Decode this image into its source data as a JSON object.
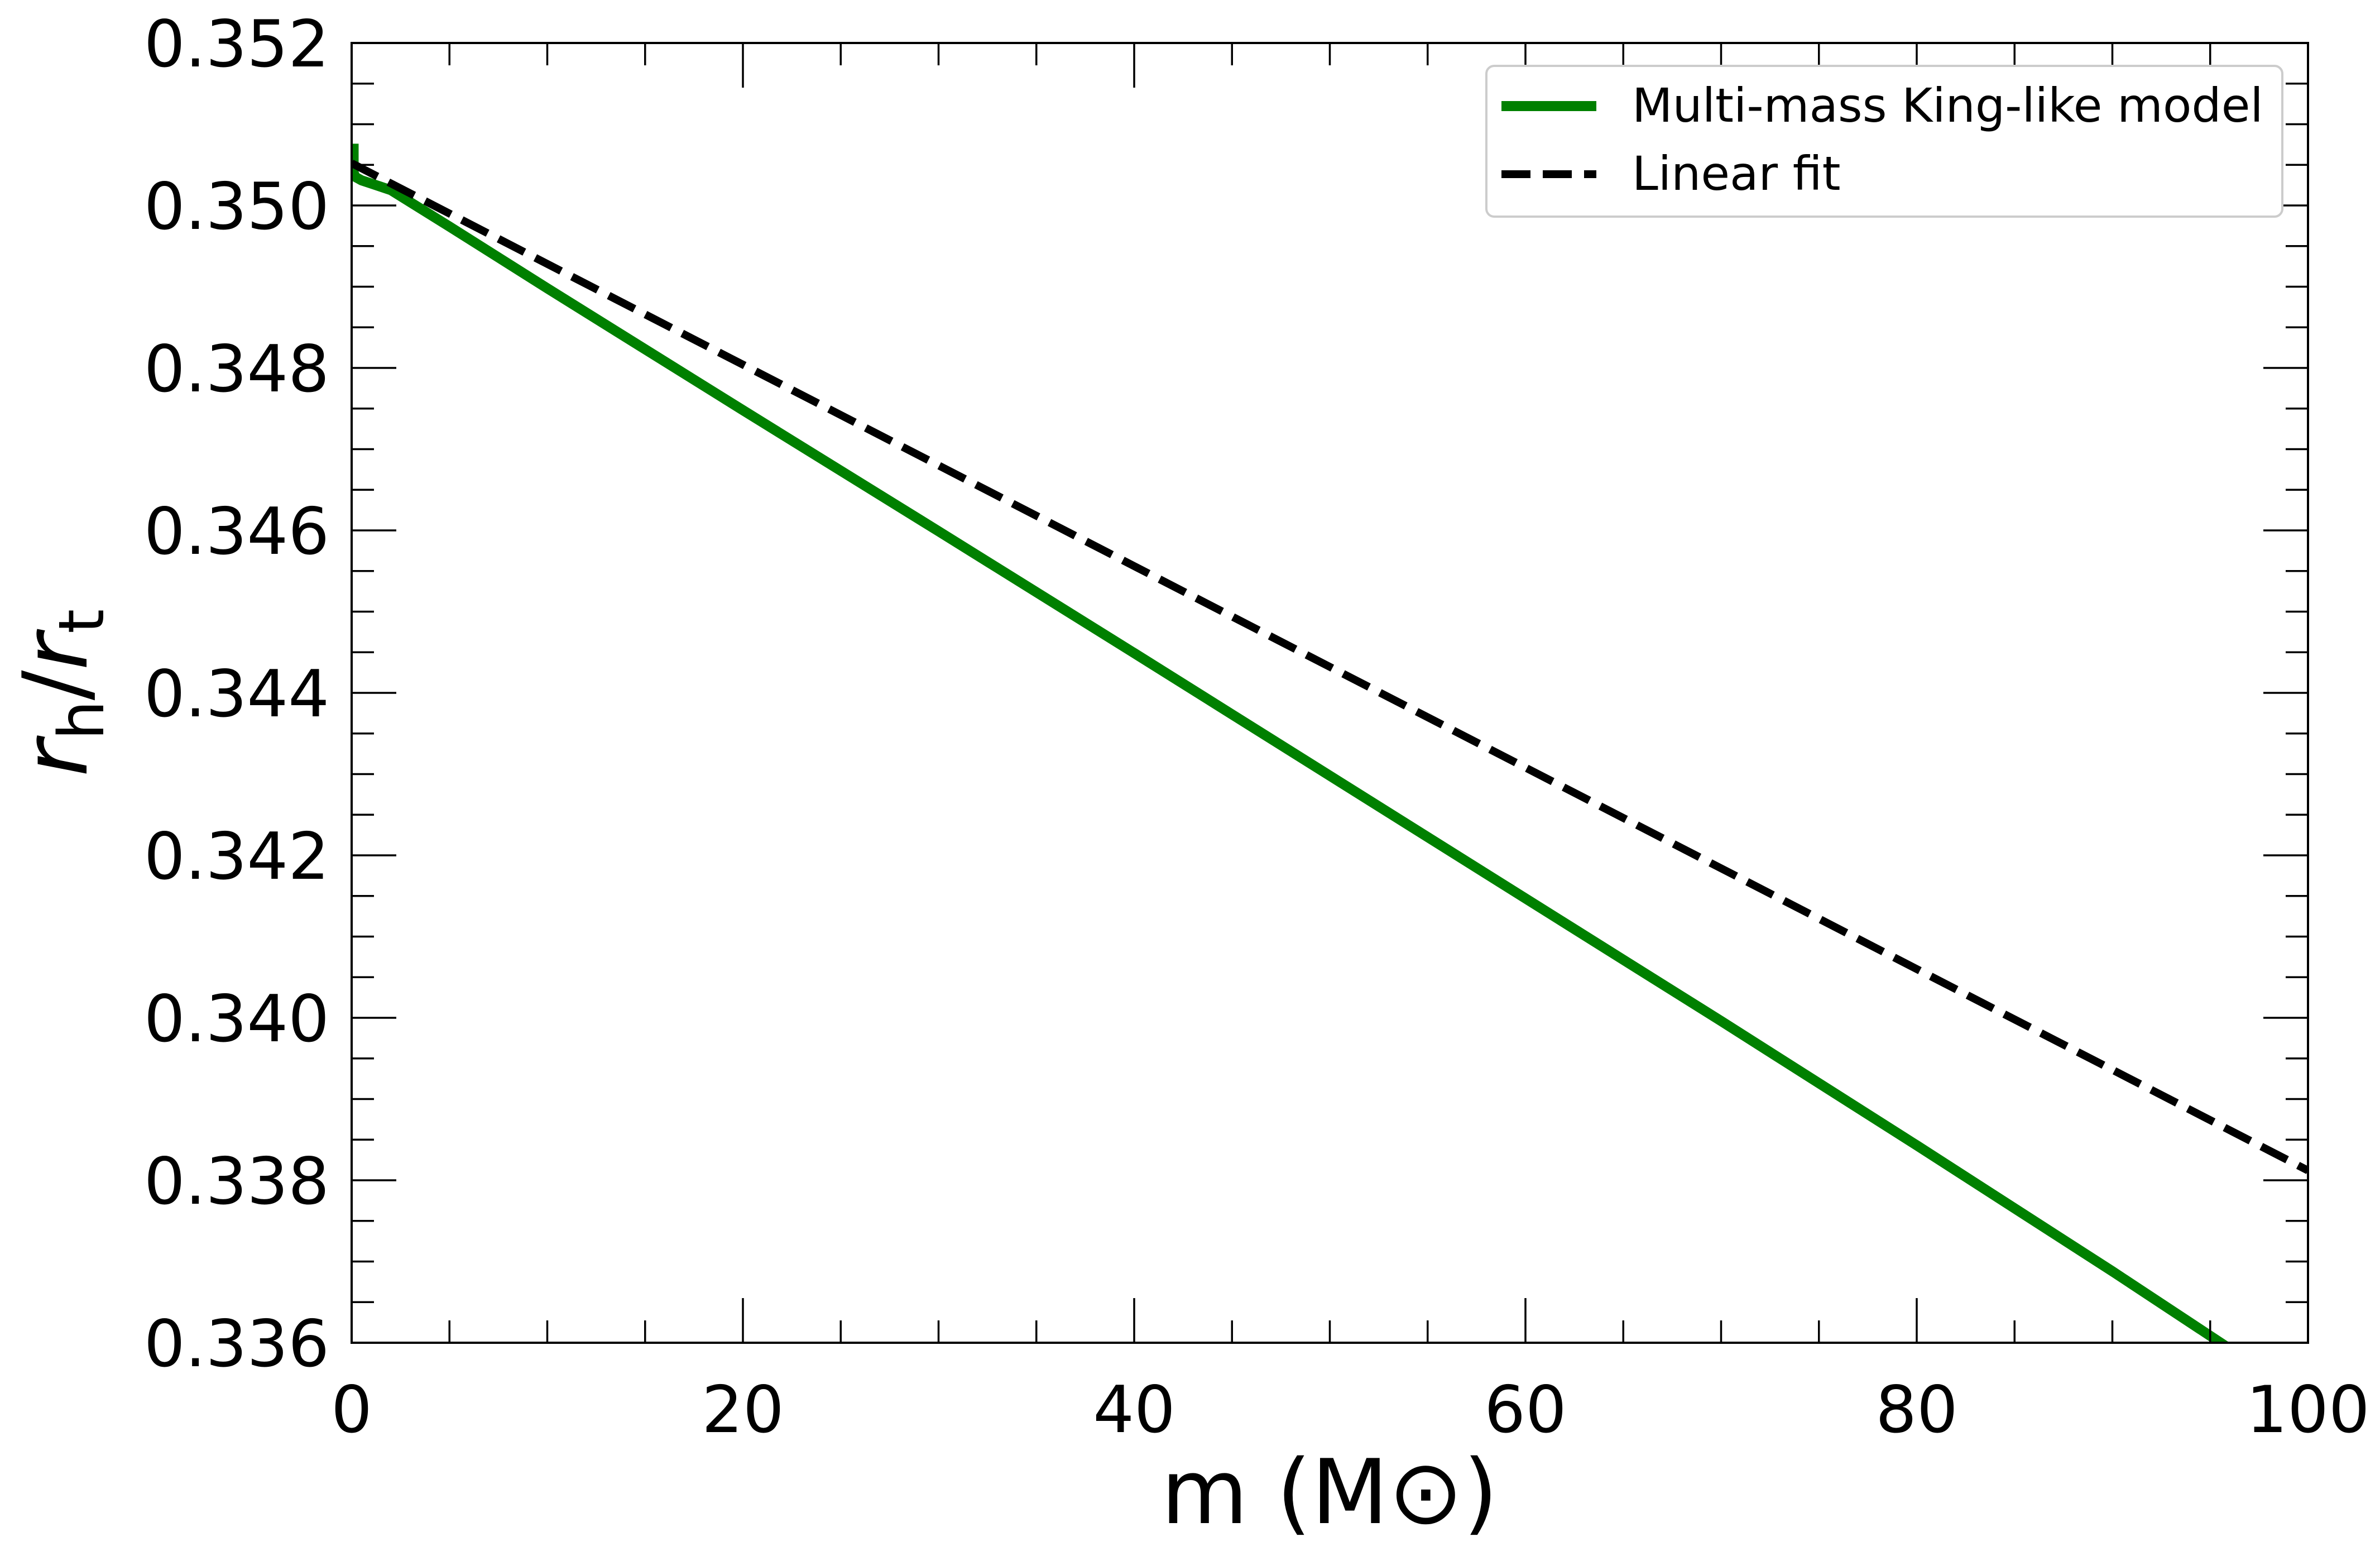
{
  "chart_data": {
    "type": "line",
    "title": "",
    "xlabel": {
      "base": "m (M",
      "symbol": "⊙",
      "close": ")"
    },
    "ylabel": {
      "var1": "r",
      "sub1": "h",
      "slash": "/",
      "var2": "r",
      "sub2": "t"
    },
    "xlim": [
      0,
      100
    ],
    "ylim": [
      0.336,
      0.352
    ],
    "x_ticks": [
      0,
      20,
      40,
      60,
      80,
      100
    ],
    "x_tick_labels": [
      "0",
      "20",
      "40",
      "60",
      "80",
      "100"
    ],
    "y_ticks": [
      0.336,
      0.338,
      0.34,
      0.342,
      0.344,
      0.346,
      0.348,
      0.35,
      0.352
    ],
    "y_tick_labels": [
      "0.336",
      "0.338",
      "0.340",
      "0.342",
      "0.344",
      "0.346",
      "0.348",
      "0.350",
      "0.352"
    ],
    "x_minor_step": 5,
    "y_minor_step": 0.0005,
    "grid": false,
    "legend_position": "top-right",
    "series": [
      {
        "name": "Multi-mass King-like model",
        "color": "#008000",
        "style": "solid",
        "x": [
          0.1,
          0.1,
          0.2,
          0.5,
          1,
          2,
          5,
          10,
          20,
          30,
          40,
          50,
          60,
          70,
          80,
          90,
          100
        ],
        "y": [
          0.35076,
          0.3504,
          0.35035,
          0.35031,
          0.35027,
          0.35019,
          0.34974,
          0.34898,
          0.34748,
          0.34599,
          0.34449,
          0.34298,
          0.34147,
          0.33996,
          0.33843,
          0.33688,
          0.33529
        ]
      },
      {
        "name": "Linear fit",
        "color": "#000000",
        "style": "dashed",
        "x": [
          0,
          100
        ],
        "y": [
          0.35052,
          0.33812
        ]
      }
    ]
  }
}
